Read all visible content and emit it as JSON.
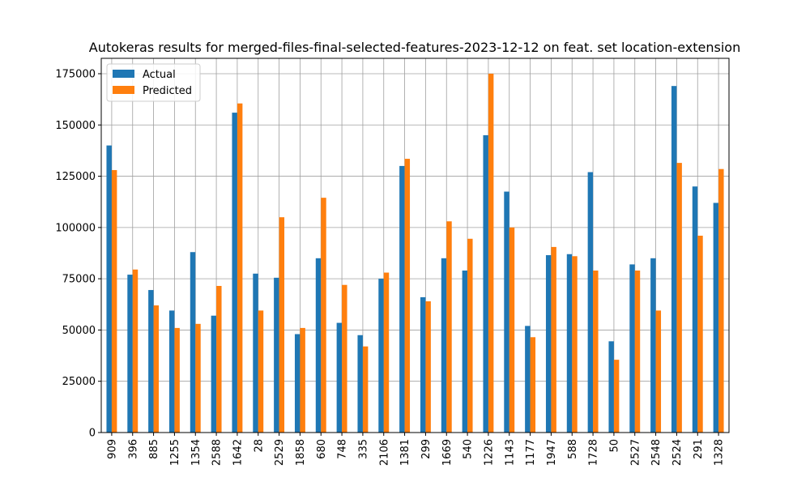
{
  "chart_data": {
    "type": "bar",
    "title": "Autokeras results for merged-files-final-selected-features-2023-12-12 on feat. set location-extension",
    "xlabel": "",
    "ylabel": "",
    "ylim": [
      0,
      182500
    ],
    "yticks": [
      0,
      25000,
      50000,
      75000,
      100000,
      125000,
      150000,
      175000
    ],
    "grid": true,
    "legend_position": "top-left",
    "categories": [
      "909",
      "396",
      "885",
      "1255",
      "1354",
      "2588",
      "1642",
      "28",
      "2529",
      "1858",
      "680",
      "748",
      "335",
      "2106",
      "1381",
      "299",
      "1669",
      "540",
      "1226",
      "1143",
      "1177",
      "1947",
      "588",
      "1728",
      "50",
      "2527",
      "2548",
      "2524",
      "291",
      "1328"
    ],
    "series": [
      {
        "name": "Actual",
        "color": "#1f77b4",
        "values": [
          140000,
          77000,
          69500,
          59500,
          88000,
          57000,
          156000,
          77500,
          75500,
          48000,
          85000,
          53500,
          47500,
          75000,
          130000,
          66000,
          85000,
          79000,
          145000,
          117500,
          52000,
          86500,
          87000,
          127000,
          44500,
          82000,
          85000,
          169000,
          120000,
          112000
        ]
      },
      {
        "name": "Predicted",
        "color": "#ff7f0e",
        "values": [
          128000,
          79500,
          62000,
          51000,
          53000,
          71500,
          160500,
          59500,
          105000,
          51000,
          114500,
          72000,
          42000,
          78000,
          133500,
          64000,
          103000,
          94500,
          175000,
          100000,
          46500,
          90500,
          86000,
          79000,
          35500,
          79000,
          59500,
          131500,
          96000,
          128500
        ]
      }
    ]
  }
}
